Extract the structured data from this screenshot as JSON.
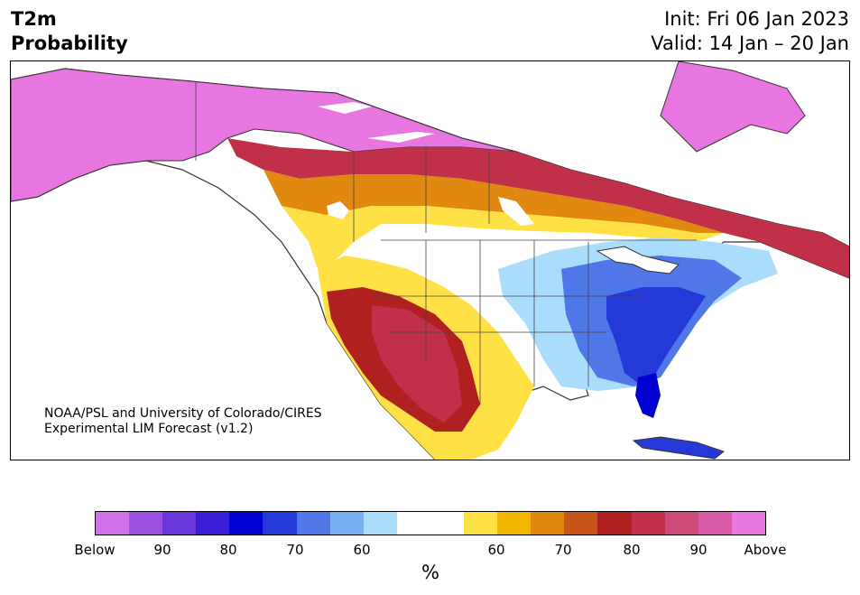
{
  "header": {
    "title_line1": "T2m",
    "title_line2": "Probability",
    "init": "Init: Fri 06 Jan 2023",
    "valid": "Valid: 14 Jan – 20 Jan"
  },
  "credit": {
    "line1": "NOAA/PSL and University of Colorado/CIRES",
    "line2": "Experimental LIM Forecast (v1.2)"
  },
  "colorbar": {
    "unit": "%",
    "labels": [
      "Below",
      "90",
      "80",
      "70",
      "60",
      "60",
      "70",
      "80",
      "90",
      "Above"
    ],
    "colors": [
      "#d070e8",
      "#9b4fe0",
      "#6a38da",
      "#3b1fd6",
      "#0000d0",
      "#2538d8",
      "#4f77e8",
      "#77b0f0",
      "#aadcfb",
      "#ffffff",
      "#ffffff",
      "#ffe045",
      "#f2b600",
      "#e08810",
      "#c85418",
      "#b02020",
      "#c03048",
      "#cc4a78",
      "#d85aa8",
      "#e876e0"
    ]
  },
  "map": {
    "region": "North America",
    "legend_colors": {
      "above_high": "#e876e0",
      "above_mid": "#c03048",
      "above_low": "#ffe045",
      "below_low": "#aadcfb",
      "below_mid": "#4f77e8",
      "below_high": "#0000d0"
    }
  }
}
